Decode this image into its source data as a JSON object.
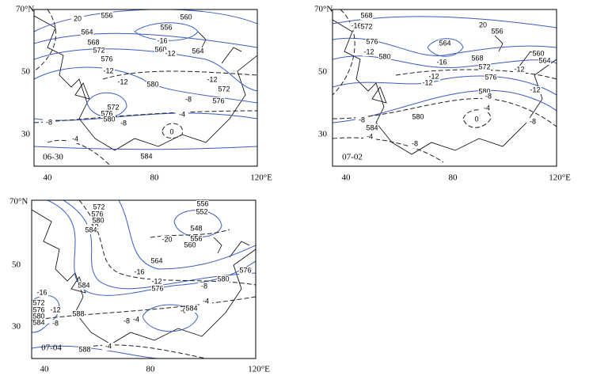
{
  "panels": [
    {
      "date": "06-30",
      "y_labels": [
        "70°N",
        "50",
        "30"
      ],
      "x_labels": [
        "40",
        "80",
        "120°E"
      ],
      "contour_labels": [
        "20",
        "556",
        "560",
        "556",
        "564",
        "-16",
        "568",
        "572",
        "560",
        "-12",
        "564",
        "576",
        "-12",
        "-12",
        "580",
        "-12",
        "572",
        "-8",
        "576",
        "572",
        "576",
        "580",
        "-8",
        "-8",
        "-4",
        "0",
        "-4",
        "584"
      ]
    },
    {
      "date": "07-02",
      "y_labels": [
        "70°N",
        "50",
        "30"
      ],
      "x_labels": [
        "40",
        "80",
        "120°E"
      ],
      "contour_labels": [
        "568",
        "-16",
        "572",
        "20",
        "556",
        "576",
        "564",
        "-12",
        "580",
        "-16",
        "568",
        "560",
        "564",
        "572",
        "-12",
        "-12",
        "576",
        "-12",
        "-12",
        "580",
        "-8",
        "-4",
        "0",
        "-8",
        "580",
        "-8",
        "584",
        "-4",
        "-8"
      ]
    },
    {
      "date": "07-04",
      "y_labels": [
        "70°N",
        "50",
        "30"
      ],
      "x_labels": [
        "40",
        "80",
        "120°E"
      ],
      "contour_labels": [
        "572",
        "576",
        "580",
        "-12",
        "584",
        "556",
        "552",
        "548",
        "-20",
        "556",
        "560",
        "564",
        "-16",
        "-12",
        "576",
        "580",
        "-8",
        "576",
        "-16",
        "584",
        "572",
        "576",
        "-12",
        "580",
        "588",
        "584",
        "-8",
        "-4",
        "-0",
        "584",
        "-8",
        "-4",
        "588",
        "-4"
      ]
    }
  ]
}
